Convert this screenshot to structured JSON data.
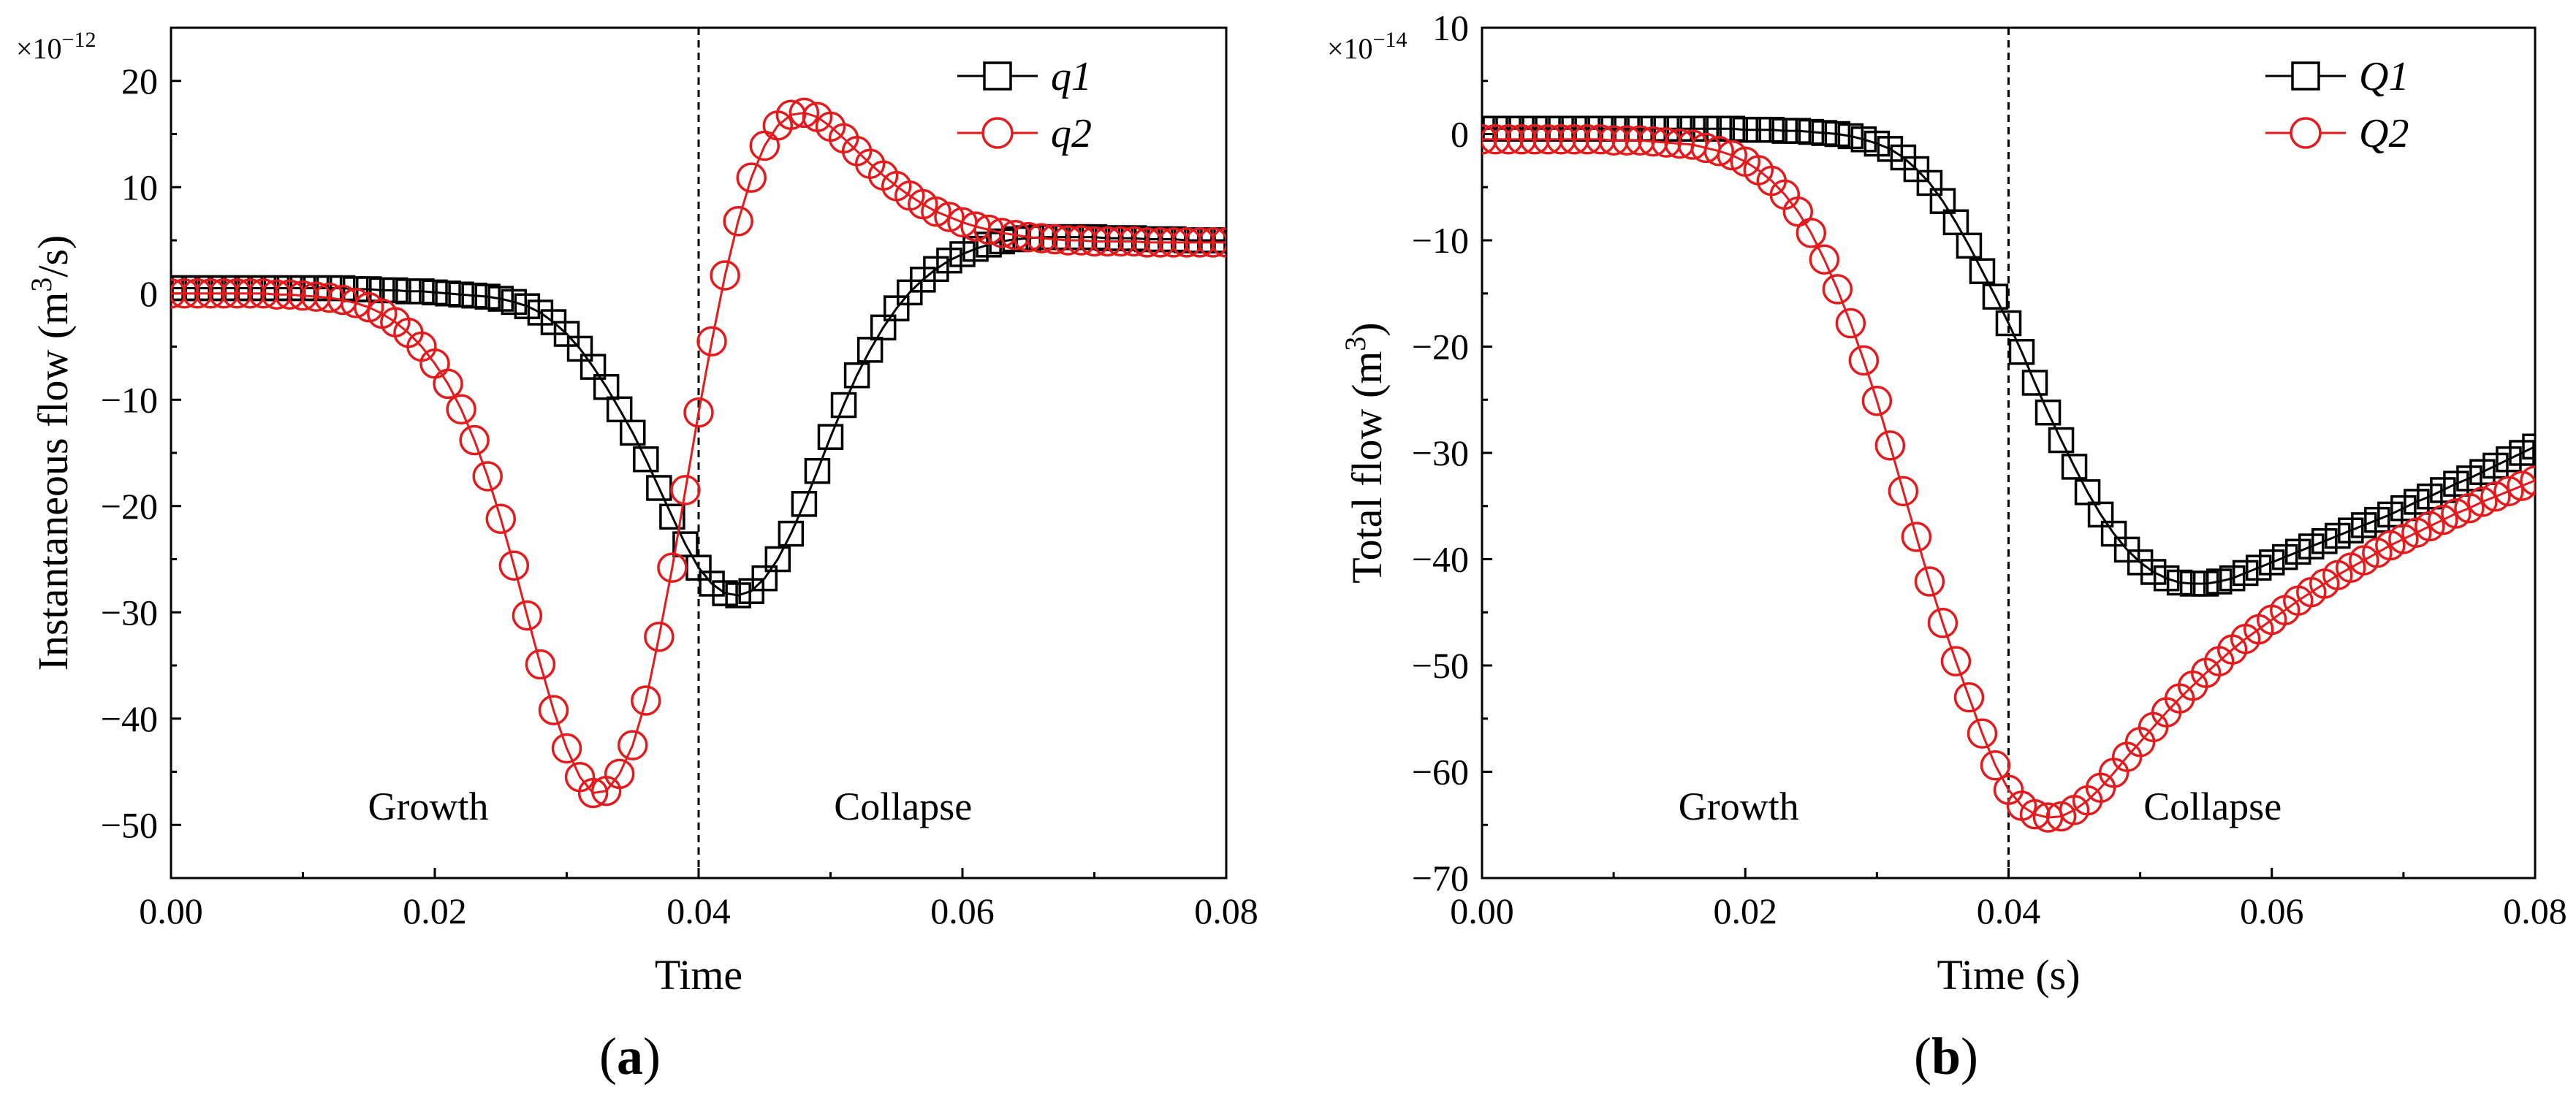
{
  "chart_data": [
    {
      "type": "scatter",
      "panel": "a",
      "panel_label": "a",
      "xlabel": "Time",
      "ylabel_main": "Instantaneous flow (m",
      "ylabel_sup": "3",
      "ylabel_tail": "/s)",
      "y_multiplier_base": "×10",
      "y_multiplier_exp": "−12",
      "xlim": [
        0,
        0.08
      ],
      "ylim": [
        -55,
        25
      ],
      "xticks": [
        0,
        0.02,
        0.04,
        0.06,
        0.08
      ],
      "xtick_labels": [
        "0.00",
        "0.02",
        "0.04",
        "0.06",
        "0.08"
      ],
      "yticks": [
        -50,
        -40,
        -30,
        -20,
        -10,
        0,
        10,
        20
      ],
      "ytick_labels": [
        "−50",
        "−40",
        "−30",
        "−20",
        "−10",
        "0",
        "10",
        "20"
      ],
      "divider_x": 0.04,
      "annotations": [
        {
          "text": "Growth",
          "x": 0.0195,
          "y": -49.5
        },
        {
          "text": "Collapse",
          "x": 0.0555,
          "y": -49.5
        }
      ],
      "legend_position": "top-right",
      "series": [
        {
          "name": "q1",
          "marker": "square",
          "color": "#000000",
          "x": [
            0.0,
            0.001,
            0.002,
            0.003,
            0.004,
            0.005,
            0.006,
            0.007,
            0.008,
            0.009,
            0.01,
            0.011,
            0.012,
            0.013,
            0.014,
            0.015,
            0.016,
            0.017,
            0.018,
            0.019,
            0.02,
            0.021,
            0.022,
            0.023,
            0.024,
            0.025,
            0.026,
            0.027,
            0.028,
            0.029,
            0.03,
            0.031,
            0.032,
            0.033,
            0.034,
            0.035,
            0.036,
            0.037,
            0.038,
            0.039,
            0.04,
            0.041,
            0.042,
            0.043,
            0.044,
            0.045,
            0.046,
            0.047,
            0.048,
            0.049,
            0.05,
            0.051,
            0.052,
            0.053,
            0.054,
            0.055,
            0.056,
            0.057,
            0.058,
            0.059,
            0.06,
            0.061,
            0.062,
            0.063,
            0.064,
            0.065,
            0.066,
            0.067,
            0.068,
            0.069,
            0.07,
            0.071,
            0.072,
            0.073,
            0.074,
            0.075,
            0.076,
            0.077,
            0.078,
            0.079,
            0.08
          ],
          "y": [
            0.5,
            0.5,
            0.5,
            0.5,
            0.5,
            0.5,
            0.5,
            0.5,
            0.5,
            0.5,
            0.5,
            0.5,
            0.5,
            0.5,
            0.4,
            0.4,
            0.3,
            0.3,
            0.2,
            0.2,
            0.1,
            0.0,
            -0.1,
            -0.2,
            -0.3,
            -0.5,
            -0.8,
            -1.2,
            -1.8,
            -2.7,
            -3.8,
            -5.2,
            -6.9,
            -8.8,
            -10.9,
            -13.1,
            -15.6,
            -18.3,
            -21.0,
            -23.6,
            -25.8,
            -27.3,
            -28.2,
            -28.4,
            -28.0,
            -26.8,
            -25.0,
            -22.6,
            -19.8,
            -16.7,
            -13.5,
            -10.5,
            -7.7,
            -5.3,
            -3.2,
            -1.4,
            0.1,
            1.3,
            2.3,
            3.1,
            3.7,
            4.2,
            4.6,
            4.9,
            5.1,
            5.2,
            5.3,
            5.3,
            5.3,
            5.3,
            5.3,
            5.2,
            5.2,
            5.2,
            5.1,
            5.1,
            5.1,
            5.0,
            5.0,
            5.0,
            5.0
          ]
        },
        {
          "name": "q2",
          "marker": "circle",
          "color": "#e41a1c",
          "x": [
            0.0,
            0.001,
            0.002,
            0.003,
            0.004,
            0.005,
            0.006,
            0.007,
            0.008,
            0.009,
            0.01,
            0.011,
            0.012,
            0.013,
            0.014,
            0.015,
            0.016,
            0.017,
            0.018,
            0.019,
            0.02,
            0.021,
            0.022,
            0.023,
            0.024,
            0.025,
            0.026,
            0.027,
            0.028,
            0.029,
            0.03,
            0.031,
            0.032,
            0.033,
            0.034,
            0.035,
            0.036,
            0.037,
            0.038,
            0.039,
            0.04,
            0.041,
            0.042,
            0.043,
            0.044,
            0.045,
            0.046,
            0.047,
            0.048,
            0.049,
            0.05,
            0.051,
            0.052,
            0.053,
            0.054,
            0.055,
            0.056,
            0.057,
            0.058,
            0.059,
            0.06,
            0.061,
            0.062,
            0.063,
            0.064,
            0.065,
            0.066,
            0.067,
            0.068,
            0.069,
            0.07,
            0.071,
            0.072,
            0.073,
            0.074,
            0.075,
            0.076,
            0.077,
            0.078,
            0.079,
            0.08
          ],
          "y": [
            0.0,
            0.0,
            0.0,
            0.0,
            0.0,
            0.0,
            0.0,
            0.0,
            -0.1,
            -0.1,
            -0.2,
            -0.3,
            -0.4,
            -0.6,
            -0.9,
            -1.3,
            -1.9,
            -2.7,
            -3.7,
            -5.0,
            -6.6,
            -8.5,
            -10.9,
            -13.8,
            -17.2,
            -21.2,
            -25.6,
            -30.3,
            -34.9,
            -39.2,
            -42.8,
            -45.5,
            -47.0,
            -46.8,
            -45.2,
            -42.5,
            -38.3,
            -32.3,
            -25.8,
            -18.5,
            -11.2,
            -4.5,
            1.7,
            6.8,
            10.9,
            13.9,
            15.8,
            16.8,
            17.0,
            16.6,
            15.7,
            14.6,
            13.4,
            12.2,
            11.1,
            10.1,
            9.2,
            8.4,
            7.7,
            7.2,
            6.7,
            6.3,
            6.0,
            5.7,
            5.5,
            5.3,
            5.2,
            5.1,
            5.0,
            5.0,
            4.9,
            4.9,
            4.9,
            4.9,
            4.8,
            4.8,
            4.8,
            4.8,
            4.8,
            4.8,
            4.8
          ]
        }
      ]
    },
    {
      "type": "scatter",
      "panel": "b",
      "panel_label": "b",
      "xlabel": "Time (s)",
      "ylabel_main": "Total flow (m",
      "ylabel_sup": "3",
      "ylabel_tail": ")",
      "y_multiplier_base": "×10",
      "y_multiplier_exp": "−14",
      "xlim": [
        0,
        0.08
      ],
      "ylim": [
        -70,
        10
      ],
      "xticks": [
        0,
        0.02,
        0.04,
        0.06,
        0.08
      ],
      "xtick_labels": [
        "0.00",
        "0.02",
        "0.04",
        "0.06",
        "0.08"
      ],
      "yticks": [
        -70,
        -60,
        -50,
        -40,
        -30,
        -20,
        -10,
        0,
        10
      ],
      "ytick_labels": [
        "−70",
        "−60",
        "−50",
        "−40",
        "−30",
        "−20",
        "−10",
        "0",
        "10"
      ],
      "divider_x": 0.04,
      "annotations": [
        {
          "text": "Growth",
          "x": 0.0195,
          "y": -64.5
        },
        {
          "text": "Collapse",
          "x": 0.0555,
          "y": -64.5
        }
      ],
      "legend_position": "top-right",
      "series": [
        {
          "name": "Q1",
          "marker": "square",
          "color": "#000000",
          "x": [
            0.0,
            0.001,
            0.002,
            0.003,
            0.004,
            0.005,
            0.006,
            0.007,
            0.008,
            0.009,
            0.01,
            0.011,
            0.012,
            0.013,
            0.014,
            0.015,
            0.016,
            0.017,
            0.018,
            0.019,
            0.02,
            0.021,
            0.022,
            0.023,
            0.024,
            0.025,
            0.026,
            0.027,
            0.028,
            0.029,
            0.03,
            0.031,
            0.032,
            0.033,
            0.034,
            0.035,
            0.036,
            0.037,
            0.038,
            0.039,
            0.04,
            0.041,
            0.042,
            0.043,
            0.044,
            0.045,
            0.046,
            0.047,
            0.048,
            0.049,
            0.05,
            0.051,
            0.052,
            0.053,
            0.054,
            0.055,
            0.056,
            0.057,
            0.058,
            0.059,
            0.06,
            0.061,
            0.062,
            0.063,
            0.064,
            0.065,
            0.066,
            0.067,
            0.068,
            0.069,
            0.07,
            0.071,
            0.072,
            0.073,
            0.074,
            0.075,
            0.076,
            0.077,
            0.078,
            0.079,
            0.08
          ],
          "y": [
            0.5,
            0.5,
            0.5,
            0.5,
            0.5,
            0.5,
            0.5,
            0.5,
            0.5,
            0.5,
            0.5,
            0.5,
            0.5,
            0.5,
            0.5,
            0.5,
            0.5,
            0.5,
            0.5,
            0.5,
            0.4,
            0.4,
            0.4,
            0.3,
            0.3,
            0.2,
            0.1,
            0.0,
            -0.2,
            -0.5,
            -0.9,
            -1.4,
            -2.2,
            -3.3,
            -4.6,
            -6.3,
            -8.3,
            -10.5,
            -12.9,
            -15.3,
            -17.8,
            -20.5,
            -23.4,
            -26.2,
            -28.8,
            -31.3,
            -33.7,
            -35.8,
            -37.6,
            -39.1,
            -40.3,
            -41.2,
            -41.8,
            -42.2,
            -42.3,
            -42.3,
            -42.1,
            -41.8,
            -41.3,
            -40.8,
            -40.3,
            -39.8,
            -39.3,
            -38.8,
            -38.3,
            -37.8,
            -37.3,
            -36.8,
            -36.3,
            -35.8,
            -35.2,
            -34.6,
            -34.1,
            -33.5,
            -32.9,
            -32.4,
            -31.8,
            -31.2,
            -30.6,
            -30.0,
            -29.4
          ]
        },
        {
          "name": "Q2",
          "marker": "circle",
          "color": "#e41a1c",
          "x": [
            0.0,
            0.001,
            0.002,
            0.003,
            0.004,
            0.005,
            0.006,
            0.007,
            0.008,
            0.009,
            0.01,
            0.011,
            0.012,
            0.013,
            0.014,
            0.015,
            0.016,
            0.017,
            0.018,
            0.019,
            0.02,
            0.021,
            0.022,
            0.023,
            0.024,
            0.025,
            0.026,
            0.027,
            0.028,
            0.029,
            0.03,
            0.031,
            0.032,
            0.033,
            0.034,
            0.035,
            0.036,
            0.037,
            0.038,
            0.039,
            0.04,
            0.041,
            0.042,
            0.043,
            0.044,
            0.045,
            0.046,
            0.047,
            0.048,
            0.049,
            0.05,
            0.051,
            0.052,
            0.053,
            0.054,
            0.055,
            0.056,
            0.057,
            0.058,
            0.059,
            0.06,
            0.061,
            0.062,
            0.063,
            0.064,
            0.065,
            0.066,
            0.067,
            0.068,
            0.069,
            0.07,
            0.071,
            0.072,
            0.073,
            0.074,
            0.075,
            0.076,
            0.077,
            0.078,
            0.079,
            0.08
          ],
          "y": [
            -0.5,
            -0.5,
            -0.5,
            -0.5,
            -0.5,
            -0.5,
            -0.5,
            -0.5,
            -0.5,
            -0.5,
            -0.6,
            -0.6,
            -0.6,
            -0.7,
            -0.8,
            -0.9,
            -1.0,
            -1.3,
            -1.6,
            -2.0,
            -2.6,
            -3.4,
            -4.4,
            -5.7,
            -7.3,
            -9.3,
            -11.8,
            -14.6,
            -17.8,
            -21.3,
            -25.1,
            -29.3,
            -33.6,
            -37.9,
            -42.1,
            -46.0,
            -49.6,
            -53.0,
            -56.4,
            -59.4,
            -61.7,
            -63.2,
            -64.0,
            -64.3,
            -64.2,
            -63.6,
            -62.7,
            -61.5,
            -60.1,
            -58.6,
            -57.2,
            -55.8,
            -54.4,
            -53.1,
            -51.9,
            -50.7,
            -49.6,
            -48.5,
            -47.5,
            -46.6,
            -45.7,
            -44.8,
            -43.9,
            -43.1,
            -42.3,
            -41.5,
            -40.8,
            -40.1,
            -39.4,
            -38.7,
            -38.1,
            -37.5,
            -36.9,
            -36.3,
            -35.7,
            -35.2,
            -34.6,
            -34.1,
            -33.6,
            -33.1,
            -32.6
          ]
        }
      ]
    }
  ]
}
